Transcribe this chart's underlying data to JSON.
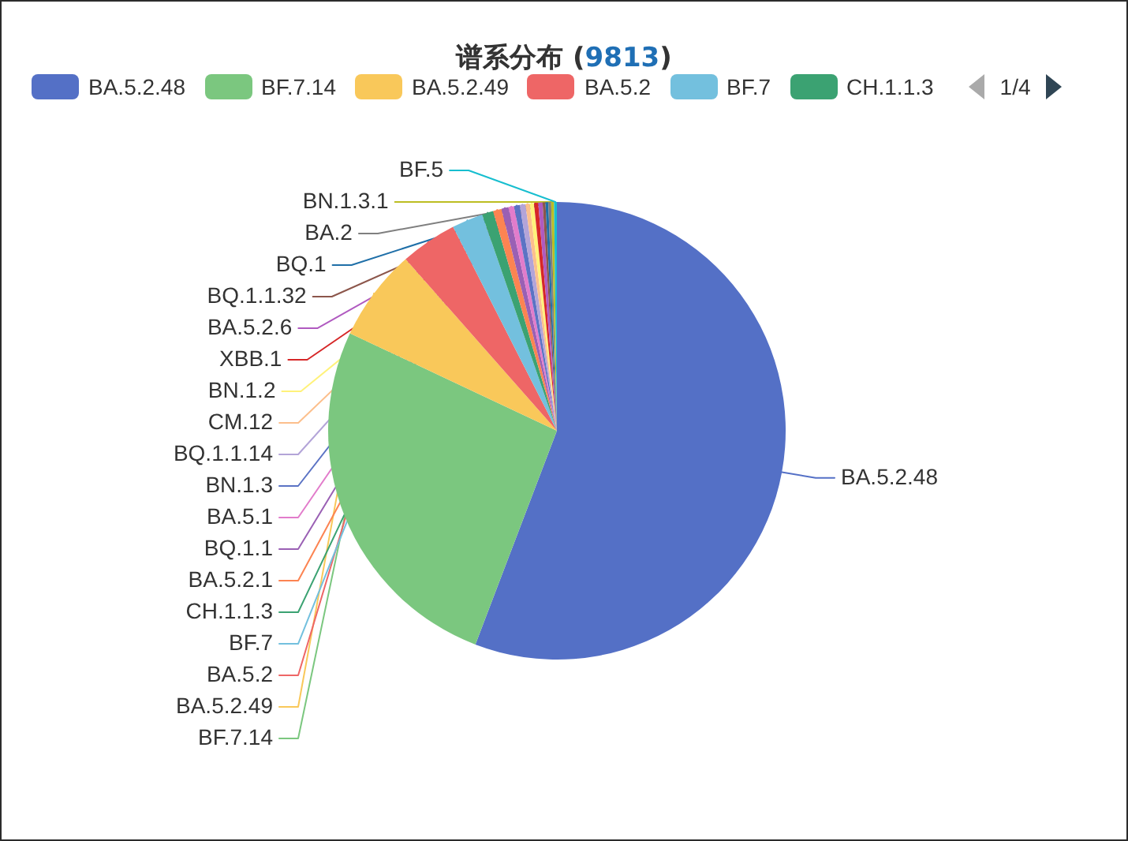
{
  "chart_data": {
    "type": "pie",
    "title": "谱系分布 (9813)",
    "categories": [
      "BA.5.2.48",
      "BF.7.14",
      "BA.5.2.49",
      "BA.5.2",
      "BF.7",
      "CH.1.1.3",
      "BA.5.2.1",
      "BQ.1.1",
      "BA.5.1",
      "BN.1.3",
      "BQ.1.1.14",
      "CM.12",
      "BN.1.2",
      "XBB.1",
      "BA.5.2.6",
      "BQ.1.1.32",
      "BQ.1",
      "BA.2",
      "BN.1.3.1",
      "BF.5"
    ],
    "values": [
      55.8,
      26.2,
      6.5,
      4.0,
      2.2,
      0.8,
      0.6,
      0.5,
      0.4,
      0.4,
      0.4,
      0.3,
      0.3,
      0.3,
      0.3,
      0.2,
      0.2,
      0.2,
      0.2,
      0.2
    ],
    "colors": [
      "#5470c6",
      "#7bc77f",
      "#f9c85a",
      "#ee6666",
      "#73c0de",
      "#3ba272",
      "#fc8452",
      "#9a60b4",
      "#e27ccb",
      "#5b73c4",
      "#b3a4d8",
      "#fcbf8c",
      "#fff27a",
      "#d62728",
      "#b05ac0",
      "#8c564b",
      "#1f6fa8",
      "#7f7f7f",
      "#bcbd22",
      "#17becf"
    ],
    "legend": "top",
    "annotations": [
      "1/4"
    ]
  }
}
